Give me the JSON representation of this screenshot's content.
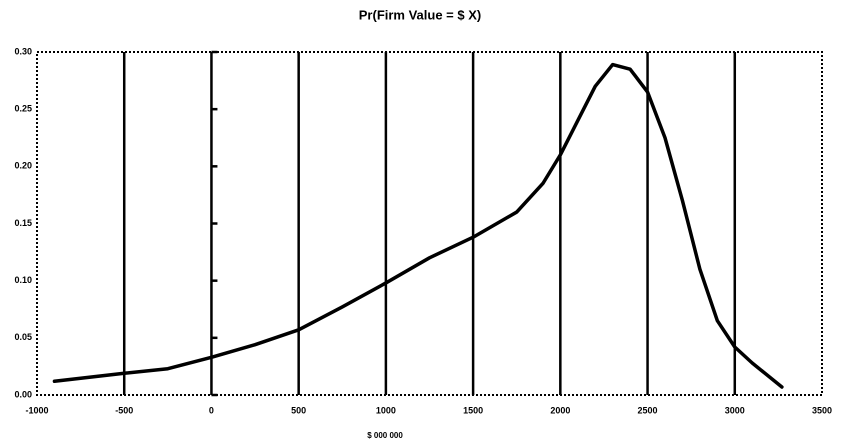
{
  "chart_data": {
    "type": "line",
    "title": "Pr(Firm Value = $ X)",
    "x_label": "$ 000 000",
    "x": [
      -900,
      -500,
      -250,
      0,
      250,
      500,
      750,
      1000,
      1250,
      1500,
      1750,
      1900,
      2000,
      2100,
      2200,
      2300,
      2400,
      2500,
      2600,
      2700,
      2800,
      2900,
      3000,
      3100,
      3270
    ],
    "values": [
      0.012,
      0.019,
      0.023,
      0.033,
      0.044,
      0.057,
      0.077,
      0.098,
      0.12,
      0.138,
      0.16,
      0.185,
      0.21,
      0.24,
      0.27,
      0.289,
      0.285,
      0.265,
      0.225,
      0.17,
      0.11,
      0.065,
      0.042,
      0.028,
      0.007
    ],
    "color": "#000000",
    "xlim": [
      -1000,
      3500
    ],
    "ylim": [
      0,
      0.3
    ],
    "xticks": [
      -1000,
      -500,
      0,
      500,
      1000,
      1500,
      2000,
      2500,
      3000,
      3500
    ],
    "yticks": [
      {
        "value": 0,
        "label": "0.00"
      },
      {
        "value": 0.05,
        "label": "0.05"
      },
      {
        "value": 0.1,
        "label": "0.10"
      },
      {
        "value": 0.15,
        "label": "0.15"
      },
      {
        "value": 0.2,
        "label": "0.20"
      },
      {
        "value": 0.25,
        "label": "0.25"
      },
      {
        "value": 0.3,
        "label": "0.30"
      }
    ],
    "grid": true
  }
}
